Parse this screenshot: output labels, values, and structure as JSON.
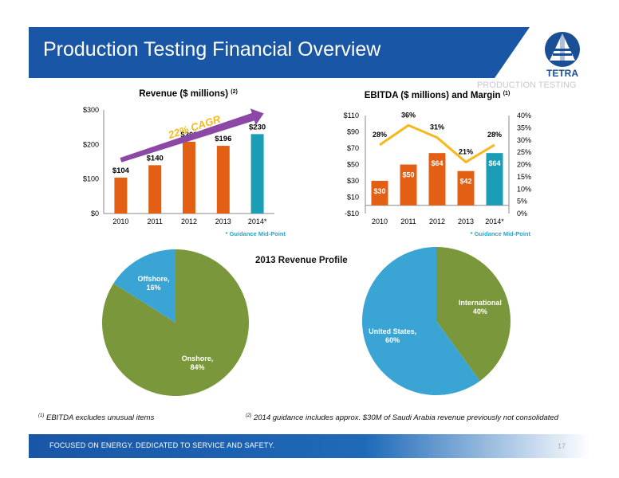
{
  "header": {
    "title": "Production Testing Financial Overview",
    "subtitle": "PRODUCTION TESTING"
  },
  "logo": {
    "text": "TETRA"
  },
  "footer": {
    "tagline": "FOCUSED ON ENERGY. DEDICATED TO SERVICE AND SAFETY.",
    "page": "17"
  },
  "footnotes": [
    {
      "marker": "(1)",
      "text": "EBITDA excludes  unusual items"
    },
    {
      "marker": "(2)",
      "text": "2014 guidance includes approx. $30M of Saudi Arabia revenue previously not consolidated"
    }
  ],
  "colors": {
    "orange": "#e35f14",
    "teal": "#1b9eb5",
    "gold": "#f6b81b",
    "blue": "#3aa5d4",
    "green": "#7a983b",
    "header": "#1a56a6"
  },
  "pie_title": "2013 Revenue Profile",
  "chart_data": [
    {
      "type": "bar",
      "title": "Revenue ($ millions)",
      "title_note": "(2)",
      "categories": [
        "2010",
        "2011",
        "2012",
        "2013",
        "2014*"
      ],
      "values": [
        104,
        140,
        208,
        196,
        230
      ],
      "labels": [
        "$104",
        "$140",
        "$208",
        "$196",
        "$230"
      ],
      "ylim": [
        0,
        300
      ],
      "yticks": [
        "$0",
        "$100",
        "$200",
        "$300"
      ],
      "annotation": "22% CAGR",
      "note": "* Guidance Mid-Point"
    },
    {
      "type": "bar",
      "title": "EBITDA ($ millions) and Margin",
      "title_note": "(1)",
      "categories": [
        "2010",
        "2011",
        "2012",
        "2013",
        "2014*"
      ],
      "series": [
        {
          "values": [
            30,
            50,
            64,
            42,
            64
          ],
          "labels": [
            "$30",
            "$50",
            "$64",
            "$42",
            "$64"
          ]
        },
        {
          "type": "line",
          "axis": "right",
          "values": [
            28,
            36,
            31,
            21,
            28
          ],
          "labels": [
            "28%",
            "36%",
            "31%",
            "21%",
            "28%"
          ]
        }
      ],
      "ylim": [
        -10,
        110
      ],
      "yticks": [
        "-$10",
        "$10",
        "$30",
        "$50",
        "$70",
        "$90",
        "$110"
      ],
      "y2lim": [
        0,
        40
      ],
      "y2ticks": [
        "0%",
        "5%",
        "10%",
        "15%",
        "20%",
        "25%",
        "30%",
        "35%",
        "40%"
      ],
      "note": "* Guidance Mid-Point"
    },
    {
      "type": "pie",
      "labels": [
        "Onshore,",
        "Offshore,"
      ],
      "values": [
        84,
        16
      ],
      "value_labels": [
        "84%",
        "16%"
      ]
    },
    {
      "type": "pie",
      "labels": [
        "International",
        "United States,"
      ],
      "values": [
        40,
        60
      ],
      "value_labels": [
        "40%",
        "60%"
      ]
    }
  ]
}
